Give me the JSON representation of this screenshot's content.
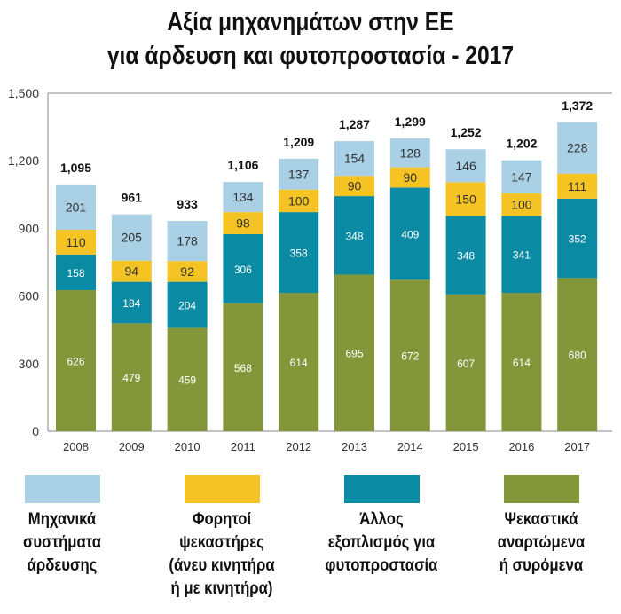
{
  "chart_data": {
    "type": "bar",
    "stacked": true,
    "title": [
      "Αξία μηχανημάτων στην ΕΕ",
      "για άρδευση και φυτοπροστασία - 2017"
    ],
    "categories": [
      "2008",
      "2009",
      "2010",
      "2011",
      "2012",
      "2013",
      "2014",
      "2015",
      "2016",
      "2017"
    ],
    "series": [
      {
        "name": "Ψεκαστικά αναρτώμενα ή συρόμενα",
        "color": "#84963a",
        "values": [
          626,
          479,
          459,
          568,
          614,
          695,
          672,
          607,
          614,
          680
        ],
        "labels": [
          "626",
          "479",
          "459",
          "568",
          "614",
          "695",
          "672",
          "607",
          "614",
          "680"
        ]
      },
      {
        "name": "Άλλος εξοπλισμός για φυτοπροστασία",
        "color": "#0a8aa3",
        "values": [
          158,
          184,
          204,
          306,
          358,
          348,
          409,
          348,
          341,
          352
        ],
        "labels": [
          "158",
          "184",
          "204",
          "306",
          "358",
          "348",
          "409",
          "348",
          "341",
          "352"
        ]
      },
      {
        "name": "Φορητοί ψεκαστήρες (άνευ κινητήρα ή με κινητήρα)",
        "color": "#f5c324",
        "values": [
          110,
          94,
          92,
          98,
          100,
          90,
          90,
          150,
          100,
          111
        ],
        "labels": [
          "110",
          "94",
          "92",
          "98",
          "100",
          "90",
          "90",
          "150",
          "100",
          "111"
        ]
      },
      {
        "name": "Μηχανικά συστήματα άρδευσης",
        "color": "#a9d0e4",
        "values": [
          201,
          205,
          178,
          134,
          137,
          154,
          128,
          146,
          147,
          228
        ],
        "labels": [
          "201",
          "205",
          "178",
          "134",
          "137",
          "154",
          "128",
          "146",
          "147",
          "228"
        ]
      }
    ],
    "totals": [
      "1,095",
      "961",
      "933",
      "1,106",
      "1,209",
      "1,287",
      "1,299",
      "1,252",
      "1,202",
      "1,372"
    ],
    "total_values": [
      1095,
      961,
      933,
      1106,
      1209,
      1287,
      1299,
      1252,
      1202,
      1372
    ],
    "yticks": [
      "0",
      "300",
      "600",
      "900",
      "1,200",
      "1,500"
    ],
    "ytick_values": [
      0,
      300,
      600,
      900,
      1200,
      1500
    ],
    "ylim": [
      0,
      1500
    ],
    "grid": false,
    "legend_placement": "bottom"
  },
  "legend": [
    {
      "lines": [
        "Μηχανικά",
        "συστήματα",
        "άρδευσης"
      ],
      "color": "#a9d0e4"
    },
    {
      "lines": [
        "Φορητοί ψεκαστήρες",
        "(άνευ κινητήρα",
        "ή με κινητήρα)"
      ],
      "color": "#f5c324"
    },
    {
      "lines": [
        "Άλλος",
        "εξοπλισμός για",
        "φυτοπροστασία"
      ],
      "color": "#0a8aa3"
    },
    {
      "lines": [
        "Ψεκαστικά",
        "αναρτώμενα",
        "ή συρόμενα"
      ],
      "color": "#84963a"
    }
  ]
}
